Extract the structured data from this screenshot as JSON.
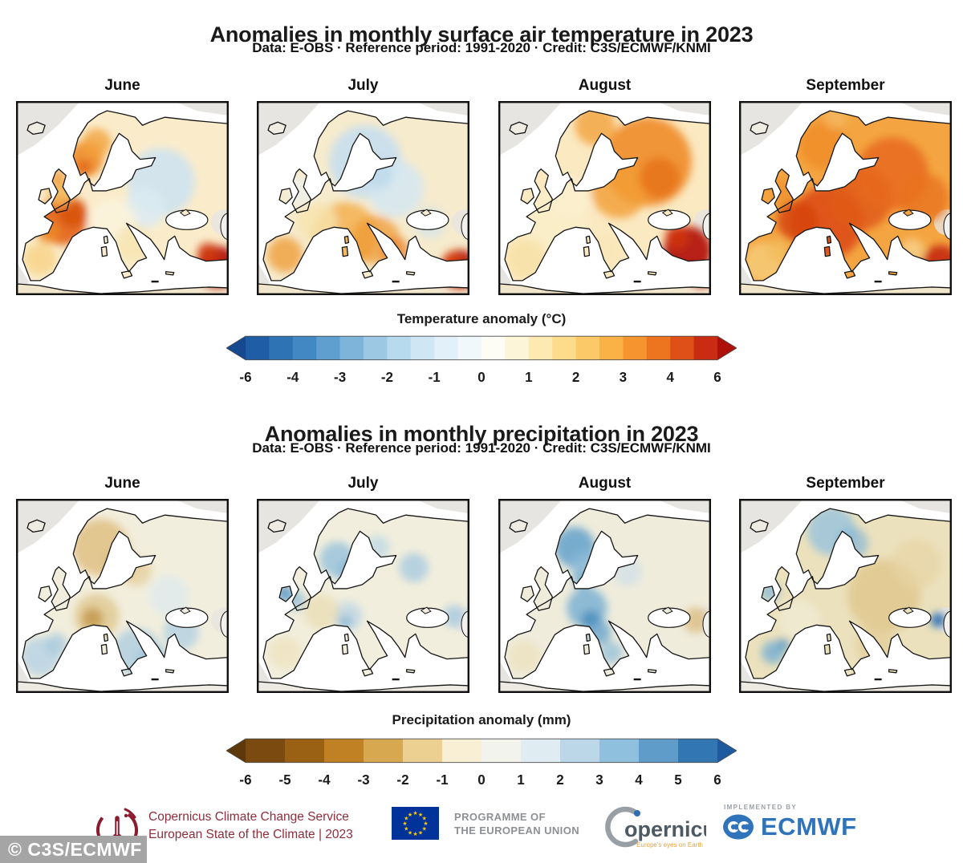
{
  "watermark": {
    "text": "© C3S/ECMWF",
    "bg": "#a5a5a5"
  },
  "footer": {
    "c3s": {
      "line1": "Copernicus Climate Change Service",
      "line2": "European State of the Climate | 2023",
      "color": "#8f2d3c"
    },
    "eu": {
      "line1": "PROGRAMME OF",
      "line2": "THE EUROPEAN UNION",
      "flag_blue": "#003399",
      "star_yellow": "#ffcc00"
    },
    "copernicus": {
      "wordmark": "opernicus",
      "tagline": "Europe's eyes on Earth",
      "word_color": "#4d5a64",
      "tagline_color": "#e8a23b"
    },
    "ecmwf": {
      "pre": "IMPLEMENTED BY",
      "name": "ECMWF",
      "color": "#2f74ba"
    }
  },
  "chart_data": [
    {
      "type": "heatmap",
      "variable": "surface air temperature anomaly",
      "units": "°C",
      "year": 2023,
      "region": "Europe",
      "dataset": "E-OBS",
      "reference_period": "1991-2020",
      "title": "Anomalies in monthly surface air temperature in 2023",
      "subtitle": "Data: E-OBS · Reference period: 1991-2020 · Credit: C3S/ECMWF/KNMI",
      "colorbar": {
        "label": "Temperature anomaly (°C)",
        "ticks": [
          "-6",
          "-4",
          "-3",
          "-2",
          "-1",
          "0",
          "1",
          "2",
          "3",
          "4",
          "6"
        ],
        "colors": [
          "#1f5ea6",
          "#2e74b5",
          "#4289c4",
          "#5f9fd0",
          "#7fb4da",
          "#9cc8e4",
          "#b8daee",
          "#cfe7f4",
          "#e2f0f9",
          "#f0f8fc",
          "#fdfdf6",
          "#fdf5d8",
          "#fdeab2",
          "#fddd8c",
          "#fcc968",
          "#fab146",
          "#f69530",
          "#ee7520",
          "#df4f18",
          "#c92c12"
        ],
        "arrow_left": "#16498f",
        "arrow_right": "#ac120a"
      },
      "maps": [
        {
          "month": "June",
          "summary": "Warm anomalies of +2 to +4°C over western Europe, the British Isles and southern Norway; near-normal to slightly cool over eastern Europe; above +6°C near the Caucasus.",
          "land": "#faeccb",
          "africa": "#f1e6cc",
          "iceland": "#efece2",
          "blobs": [
            [
              58,
              148,
              30,
              "#e4671c",
              0.95
            ],
            [
              70,
              138,
              18,
              "#d7520f",
              0.85
            ],
            [
              40,
              162,
              14,
              "#ef8c28",
              0.8
            ],
            [
              86,
              72,
              22,
              "#ef8c28",
              0.9
            ],
            [
              84,
              82,
              10,
              "#e06718",
              0.8
            ],
            [
              100,
              52,
              18,
              "#f2a13c",
              0.8
            ],
            [
              55,
              115,
              16,
              "#f5b657",
              0.85
            ],
            [
              52,
              95,
              11,
              "#ef9934",
              0.75
            ],
            [
              180,
              100,
              42,
              "#cfe3ef",
              0.9
            ],
            [
              160,
              132,
              25,
              "#dcebf3",
              0.85
            ],
            [
              250,
              205,
              26,
              "#b5160c",
              0.95
            ],
            [
              238,
              188,
              13,
              "#d03b12",
              0.85
            ],
            [
              30,
              195,
              20,
              "#f6c96e",
              0.6
            ],
            [
              120,
              152,
              30,
              "#fbf3dc",
              0.9
            ],
            [
              145,
              175,
              22,
              "#f7e3ab",
              0.7
            ]
          ]
        },
        {
          "month": "July",
          "summary": "Cooler than average over Scandinavia, the Baltic and northwestern Russia; +1 to +3°C over central and southern Europe and Iberia; extreme warmth over eastern Turkey and the Caucasus.",
          "land": "#f6ebcd",
          "africa": "#f1e6cc",
          "iceland": "#efece2",
          "blobs": [
            [
              135,
              75,
              45,
              "#c8dfee",
              0.9
            ],
            [
              172,
              108,
              35,
              "#d5e7f2",
              0.85
            ],
            [
              148,
              88,
              20,
              "#bcd8ea",
              0.8
            ],
            [
              55,
              112,
              18,
              "#f0efe9",
              0.9
            ],
            [
              110,
              165,
              40,
              "#f3a83e",
              0.75
            ],
            [
              148,
              172,
              30,
              "#ef9730",
              0.7
            ],
            [
              172,
              186,
              18,
              "#e87f24",
              0.7
            ],
            [
              35,
              190,
              22,
              "#ef9a33",
              0.75
            ],
            [
              252,
              208,
              24,
              "#bd1a0c",
              0.95
            ],
            [
              242,
              196,
              10,
              "#d8440f",
              0.85
            ],
            [
              75,
              150,
              25,
              "#f8e3ae",
              0.8
            ],
            [
              215,
              150,
              20,
              "#cfe3ef",
              0.6
            ]
          ]
        },
        {
          "month": "August",
          "summary": "Strong warm anomalies over northeastern Europe and Russia; extreme warmth (+4 to more than +6°C) over Turkey and the Caucasus; near-normal in the west.",
          "land": "#fbe9c2",
          "africa": "#f1e6cc",
          "iceland": "#efece2",
          "blobs": [
            [
              185,
              75,
              55,
              "#f08c28",
              0.9
            ],
            [
              150,
              110,
              35,
              "#f29d33",
              0.8
            ],
            [
              200,
              95,
              25,
              "#e8731c",
              0.85
            ],
            [
              120,
              30,
              25,
              "#f2a23b",
              0.8
            ],
            [
              235,
              185,
              30,
              "#b3170c",
              0.95
            ],
            [
              222,
              168,
              15,
              "#cf3310",
              0.85
            ],
            [
              252,
              215,
              15,
              "#b3170c",
              0.9
            ],
            [
              70,
              150,
              40,
              "#faeec9",
              0.9
            ],
            [
              35,
              195,
              25,
              "#f7dfa2",
              0.7
            ],
            [
              135,
              185,
              20,
              "#f9e7b8",
              0.8
            ],
            [
              90,
              120,
              25,
              "#fbf0cf",
              0.8
            ]
          ]
        },
        {
          "month": "September",
          "summary": "Exceptional warmth almost everywhere: +2 to +5°C over most of Europe, strongest over France, central Europe, the Baltic and northeastern Europe.",
          "land": "#f4a541",
          "africa": "#f1e6cc",
          "iceland": "#efece2",
          "blobs": [
            [
              110,
              150,
              45,
              "#dd4e14",
              0.9
            ],
            [
              150,
              120,
              40,
              "#e05a17",
              0.85
            ],
            [
              72,
              148,
              25,
              "#d64410",
              0.85
            ],
            [
              190,
              90,
              45,
              "#e86a1c",
              0.85
            ],
            [
              105,
              55,
              30,
              "#ef8c28",
              0.8
            ],
            [
              120,
              20,
              15,
              "#f5b964",
              0.7
            ],
            [
              30,
              200,
              25,
              "#f6cb78",
              0.85
            ],
            [
              48,
              185,
              14,
              "#f3bd5e",
              0.8
            ],
            [
              55,
              112,
              16,
              "#ef9430",
              0.8
            ],
            [
              250,
              200,
              22,
              "#c52a10",
              0.9
            ],
            [
              215,
              185,
              15,
              "#f6d795",
              0.7
            ],
            [
              230,
              120,
              30,
              "#e9731f",
              0.8
            ]
          ]
        }
      ]
    },
    {
      "type": "heatmap",
      "variable": "precipitation anomaly",
      "units": "mm",
      "year": 2023,
      "region": "Europe",
      "dataset": "E-OBS",
      "reference_period": "1991-2020",
      "title": "Anomalies in monthly precipitation in 2023",
      "subtitle": "Data: E-OBS · Reference period: 1991-2020 · Credit: C3S/ECMWF/KNMI",
      "colorbar": {
        "label": "Precipitation anomaly (mm)",
        "ticks": [
          "-6",
          "-5",
          "-4",
          "-3",
          "-2",
          "-1",
          "0",
          "1",
          "2",
          "3",
          "4",
          "5",
          "6"
        ],
        "colors": [
          "#7a4a10",
          "#9a6013",
          "#c08124",
          "#d8a851",
          "#ecd092",
          "#f8efd4",
          "#f2f3ec",
          "#dfecf2",
          "#bcd8e8",
          "#8fc0dd",
          "#5f9cca",
          "#3277b4"
        ],
        "arrow_left": "#5e370b",
        "arrow_right": "#1d5a9e"
      },
      "maps": [
        {
          "month": "June",
          "summary": "Drier than average over Scandinavia and parts of central Europe (strongest over Germany); wetter over Iberia, Italy, the Balkans and around the Black Sea.",
          "land": "#f2eedd",
          "africa": "#eceae2",
          "iceland": "#eeece2",
          "blobs": [
            [
              105,
              60,
              35,
              "#dfc084",
              0.85
            ],
            [
              130,
              80,
              20,
              "#d8b66f",
              0.7
            ],
            [
              95,
              148,
              13,
              "#a86d1e",
              0.9
            ],
            [
              100,
              145,
              28,
              "#d9ba77",
              0.6
            ],
            [
              30,
              195,
              24,
              "#b8d4e4",
              0.85
            ],
            [
              50,
              180,
              14,
              "#a5c9de",
              0.75
            ],
            [
              150,
              190,
              30,
              "#aecde0",
              0.8
            ],
            [
              170,
              200,
              20,
              "#9cc2da",
              0.7
            ],
            [
              205,
              165,
              22,
              "#b3d1e2",
              0.8
            ],
            [
              190,
              120,
              25,
              "#dce9ef",
              0.7
            ],
            [
              150,
              90,
              18,
              "#e3ca90",
              0.65
            ]
          ]
        },
        {
          "month": "July",
          "summary": "Wetter than average over Ireland, western Britain, southern Scandinavia, the Alps and parts of northeastern Europe; slightly drier over France, Germany and Iberia.",
          "land": "#f1eedd",
          "africa": "#eceae2",
          "iceland": "#eeece2",
          "blobs": [
            [
              35,
              117,
              10,
              "#5e9cc6",
              0.95
            ],
            [
              48,
              125,
              12,
              "#8fbcd8",
              0.7
            ],
            [
              100,
              75,
              22,
              "#9cc4dc",
              0.85
            ],
            [
              115,
              90,
              15,
              "#88b7d6",
              0.75
            ],
            [
              110,
              152,
              8,
              "#3f7fb4",
              0.95
            ],
            [
              113,
              145,
              18,
              "#b7d3e5",
              0.7
            ],
            [
              195,
              85,
              18,
              "#a9cbe0",
              0.8
            ],
            [
              245,
              145,
              14,
              "#a9cbe0",
              0.8
            ],
            [
              80,
              140,
              22,
              "#ead9a8",
              0.6
            ],
            [
              35,
              190,
              20,
              "#eee0b6",
              0.6
            ],
            [
              150,
              60,
              15,
              "#b7d5e6",
              0.65
            ]
          ]
        },
        {
          "month": "August",
          "summary": "Much wetter than average over Scandinavia, the Alps, central Europe and Italy; drier east of the Black Sea.",
          "land": "#efecdc",
          "africa": "#eceae2",
          "iceland": "#eeece2",
          "blobs": [
            [
              95,
              60,
              25,
              "#6ba5cc",
              0.9
            ],
            [
              110,
              85,
              20,
              "#8fbcd8",
              0.8
            ],
            [
              105,
              100,
              12,
              "#7db1d2",
              0.8
            ],
            [
              110,
              135,
              25,
              "#7db1d2",
              0.85
            ],
            [
              115,
              150,
              12,
              "#4f8fbe",
              0.9
            ],
            [
              125,
              165,
              15,
              "#6ba5cc",
              0.8
            ],
            [
              140,
              190,
              14,
              "#8fbcd8",
              0.7
            ],
            [
              245,
              150,
              16,
              "#dcbe83",
              0.8
            ],
            [
              32,
              195,
              20,
              "#ece0bb",
              0.7
            ],
            [
              160,
              90,
              18,
              "#c9dde9",
              0.6
            ]
          ]
        },
        {
          "month": "September",
          "summary": "Drier than average across much of eastern and central Europe; wetter over northern Scandinavia, Ireland, Spain and east of the Caspian region.",
          "land": "#ebe1bd",
          "africa": "#eceae2",
          "iceland": "#eeece2",
          "blobs": [
            [
              115,
              40,
              30,
              "#9cc4dc",
              0.85
            ],
            [
              140,
              55,
              20,
              "#88b7d6",
              0.7
            ],
            [
              38,
              115,
              12,
              "#8fbcd8",
              0.8
            ],
            [
              42,
              190,
              14,
              "#7db1d2",
              0.85
            ],
            [
              55,
              180,
              8,
              "#5e9cc6",
              0.8
            ],
            [
              180,
              120,
              45,
              "#e0c68c",
              0.8
            ],
            [
              170,
              180,
              25,
              "#e3cc96",
              0.7
            ],
            [
              247,
              150,
              9,
              "#2f6fae",
              0.95
            ],
            [
              220,
              80,
              30,
              "#e7d4a4",
              0.7
            ],
            [
              75,
              150,
              25,
              "#f0ead2",
              0.9
            ]
          ]
        }
      ]
    }
  ]
}
